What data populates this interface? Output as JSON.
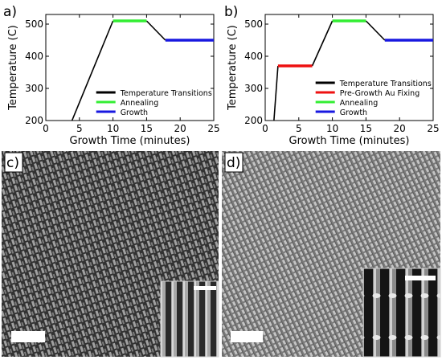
{
  "figure": {
    "panels": [
      {
        "tag": "a)"
      },
      {
        "tag": "b)"
      },
      {
        "tag": "c)"
      },
      {
        "tag": "d)"
      }
    ]
  },
  "chart_data": [
    {
      "type": "line",
      "panel": "a)",
      "xlabel": "Growth Time (minutes)",
      "ylabel": "Temperature (C)",
      "xlim": [
        0,
        25
      ],
      "ylim": [
        200,
        530
      ],
      "xticks": [
        "0",
        "5",
        "10",
        "15",
        "20",
        "25"
      ],
      "yticks": [
        "200",
        "300",
        "400",
        "500"
      ],
      "legend_position": "bottom-right",
      "series": [
        {
          "name": "Temperature Transitions",
          "color": "#000000",
          "x": [
            3.9,
            10,
            10,
            15,
            15,
            17.8
          ],
          "y": [
            200,
            510,
            510,
            510,
            510,
            450
          ],
          "segments": [
            [
              0,
              1
            ],
            [
              4,
              5
            ]
          ]
        },
        {
          "name": "Annealing",
          "color": "#33ee33",
          "x": [
            10,
            15
          ],
          "y": [
            510,
            510
          ]
        },
        {
          "name": "Growth",
          "color": "#1818e0",
          "x": [
            17.8,
            25
          ],
          "y": [
            450,
            450
          ]
        }
      ]
    },
    {
      "type": "line",
      "panel": "b)",
      "xlabel": "Growth Time (minutes)",
      "ylabel": "Temperature (C)",
      "xlim": [
        0,
        25
      ],
      "ylim": [
        200,
        530
      ],
      "xticks": [
        "0",
        "5",
        "10",
        "15",
        "20",
        "25"
      ],
      "yticks": [
        "200",
        "300",
        "400",
        "500"
      ],
      "legend_position": "bottom-right",
      "series": [
        {
          "name": "Temperature Transitions",
          "color": "#000000",
          "x": [
            1.3,
            1.9,
            7,
            10,
            15,
            17.8
          ],
          "y": [
            200,
            370,
            370,
            510,
            510,
            450
          ],
          "segments": [
            [
              0,
              1
            ],
            [
              2,
              3
            ],
            [
              4,
              5
            ]
          ]
        },
        {
          "name": "Pre-Growth Au Fixing",
          "color": "#ee1111",
          "x": [
            1.9,
            7
          ],
          "y": [
            370,
            370
          ]
        },
        {
          "name": "Annealing",
          "color": "#33ee33",
          "x": [
            10,
            15
          ],
          "y": [
            510,
            510
          ]
        },
        {
          "name": "Growth",
          "color": "#1818e0",
          "x": [
            17.8,
            25
          ],
          "y": [
            450,
            450
          ]
        }
      ]
    }
  ]
}
